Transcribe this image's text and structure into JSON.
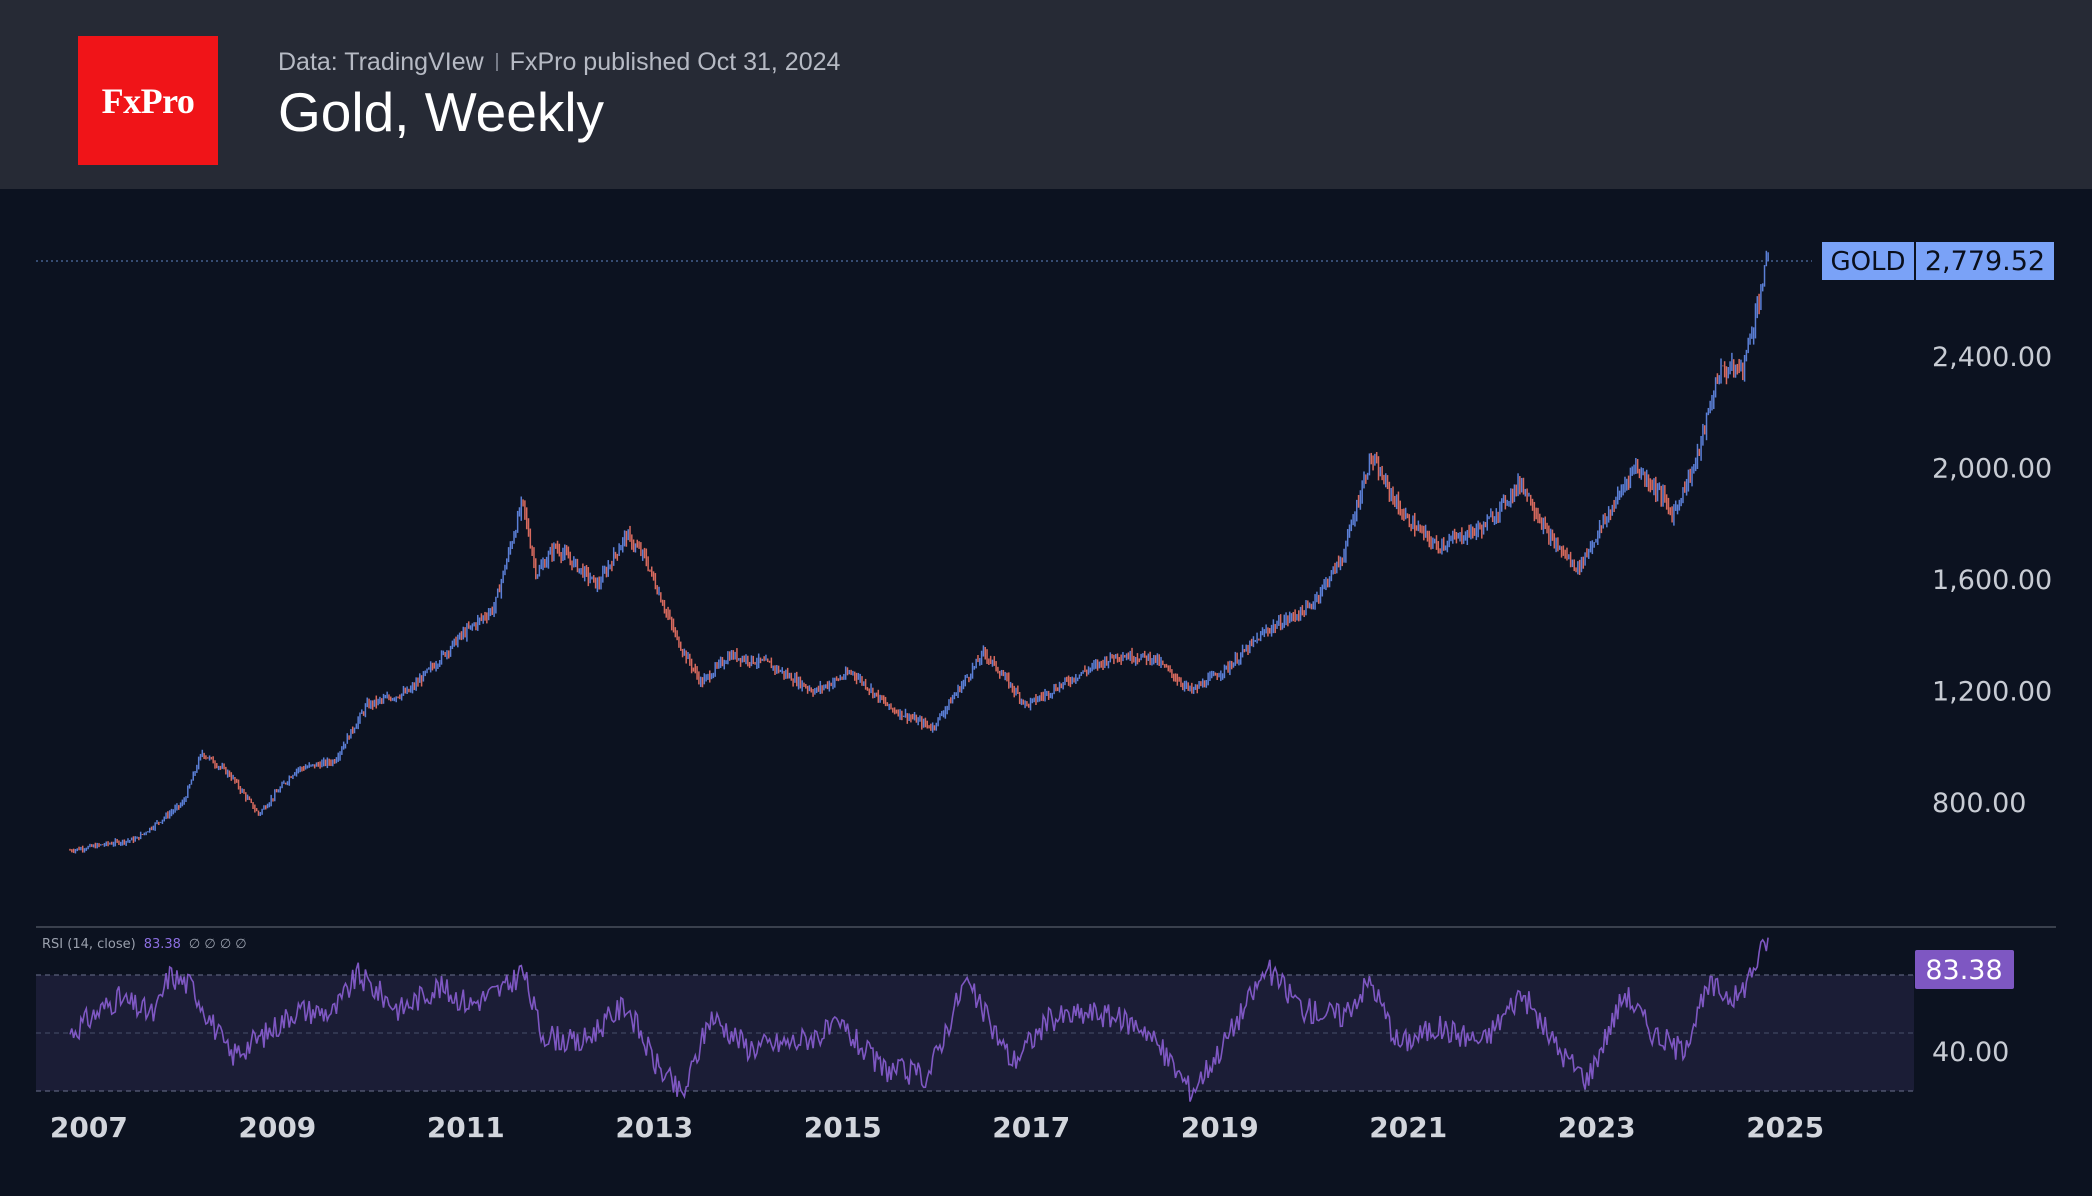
{
  "header": {
    "logo_text": "FxPro",
    "source": "Data: TradingVIew",
    "published": "FxPro published Oct 31, 2024",
    "title": "Gold, Weekly"
  },
  "colors": {
    "header_bg": "#262a35",
    "chart_bg": "#0c1220",
    "logo_red": "#f01418",
    "up": "#5b7fd6",
    "down": "#d86a5e",
    "price_badge": "#7aa2f7",
    "rsi_line": "#7e57c2",
    "rsi_badge": "#7e57c2"
  },
  "chart_data": [
    {
      "type": "candlestick",
      "symbol": "GOLD",
      "last_price": "2,779.52",
      "y_ticks": [
        "800.00",
        "1,200.00",
        "1,600.00",
        "2,000.00",
        "2,400.00"
      ],
      "y_tick_values": [
        800,
        1200,
        1600,
        2000,
        2400
      ],
      "x_ticks": [
        "2007",
        "2009",
        "2011",
        "2013",
        "2015",
        "2017",
        "2019",
        "2021",
        "2023",
        "2025"
      ],
      "x_range": [
        2006.8,
        2025.9
      ],
      "ylim": [
        355,
        2830
      ],
      "close_path": [
        [
          2006.8,
          630
        ],
        [
          2007.5,
          670
        ],
        [
          2008.0,
          800
        ],
        [
          2008.2,
          980
        ],
        [
          2008.5,
          900
        ],
        [
          2008.8,
          760
        ],
        [
          2009.2,
          920
        ],
        [
          2009.6,
          950
        ],
        [
          2009.95,
          1150
        ],
        [
          2010.4,
          1200
        ],
        [
          2010.95,
          1400
        ],
        [
          2011.3,
          1500
        ],
        [
          2011.6,
          1880
        ],
        [
          2011.75,
          1620
        ],
        [
          2011.95,
          1720
        ],
        [
          2012.4,
          1580
        ],
        [
          2012.7,
          1760
        ],
        [
          2012.9,
          1680
        ],
        [
          2013.25,
          1380
        ],
        [
          2013.5,
          1230
        ],
        [
          2013.8,
          1330
        ],
        [
          2014.2,
          1300
        ],
        [
          2014.7,
          1200
        ],
        [
          2015.1,
          1270
        ],
        [
          2015.5,
          1140
        ],
        [
          2015.95,
          1070
        ],
        [
          2016.5,
          1340
        ],
        [
          2016.95,
          1150
        ],
        [
          2017.5,
          1260
        ],
        [
          2017.9,
          1330
        ],
        [
          2018.3,
          1320
        ],
        [
          2018.7,
          1200
        ],
        [
          2019.1,
          1290
        ],
        [
          2019.5,
          1420
        ],
        [
          2019.95,
          1500
        ],
        [
          2020.3,
          1680
        ],
        [
          2020.6,
          2040
        ],
        [
          2020.95,
          1830
        ],
        [
          2021.3,
          1720
        ],
        [
          2021.8,
          1790
        ],
        [
          2022.2,
          1950
        ],
        [
          2022.5,
          1750
        ],
        [
          2022.8,
          1640
        ],
        [
          2023.2,
          1880
        ],
        [
          2023.4,
          2010
        ],
        [
          2023.7,
          1900
        ],
        [
          2023.8,
          1830
        ],
        [
          2024.05,
          2020
        ],
        [
          2024.3,
          2350
        ],
        [
          2024.55,
          2360
        ],
        [
          2024.75,
          2650
        ],
        [
          2024.83,
          2780
        ]
      ]
    },
    {
      "type": "line",
      "legend": "RSI (14, close)",
      "legend_value": "83.38",
      "legend_extra": "∅ ∅ ∅ ∅",
      "last_value": "83.38",
      "y_tick": "40.00",
      "bands": [
        30,
        50,
        70
      ],
      "ylim": [
        10,
        84
      ],
      "path": [
        [
          2006.8,
          50
        ],
        [
          2007.3,
          62
        ],
        [
          2007.7,
          56
        ],
        [
          2007.85,
          70
        ],
        [
          2008.1,
          66
        ],
        [
          2008.5,
          42
        ],
        [
          2008.9,
          50
        ],
        [
          2009.2,
          58
        ],
        [
          2009.6,
          57
        ],
        [
          2009.85,
          70
        ],
        [
          2010.3,
          58
        ],
        [
          2010.7,
          66
        ],
        [
          2011.05,
          60
        ],
        [
          2011.45,
          66
        ],
        [
          2011.6,
          72
        ],
        [
          2011.8,
          50
        ],
        [
          2012.2,
          46
        ],
        [
          2012.7,
          60
        ],
        [
          2013.0,
          40
        ],
        [
          2013.3,
          28
        ],
        [
          2013.6,
          56
        ],
        [
          2014.0,
          45
        ],
        [
          2014.5,
          47
        ],
        [
          2015.0,
          52
        ],
        [
          2015.4,
          38
        ],
        [
          2015.9,
          35
        ],
        [
          2016.3,
          68
        ],
        [
          2016.8,
          40
        ],
        [
          2017.2,
          55
        ],
        [
          2017.7,
          57
        ],
        [
          2018.2,
          52
        ],
        [
          2018.7,
          30
        ],
        [
          2019.0,
          44
        ],
        [
          2019.5,
          72
        ],
        [
          2019.9,
          58
        ],
        [
          2020.3,
          56
        ],
        [
          2020.6,
          68
        ],
        [
          2020.9,
          46
        ],
        [
          2021.3,
          52
        ],
        [
          2021.8,
          47
        ],
        [
          2022.2,
          64
        ],
        [
          2022.6,
          44
        ],
        [
          2022.9,
          34
        ],
        [
          2023.3,
          64
        ],
        [
          2023.6,
          50
        ],
        [
          2023.9,
          44
        ],
        [
          2024.2,
          66
        ],
        [
          2024.5,
          62
        ],
        [
          2024.83,
          83.4
        ]
      ]
    }
  ]
}
